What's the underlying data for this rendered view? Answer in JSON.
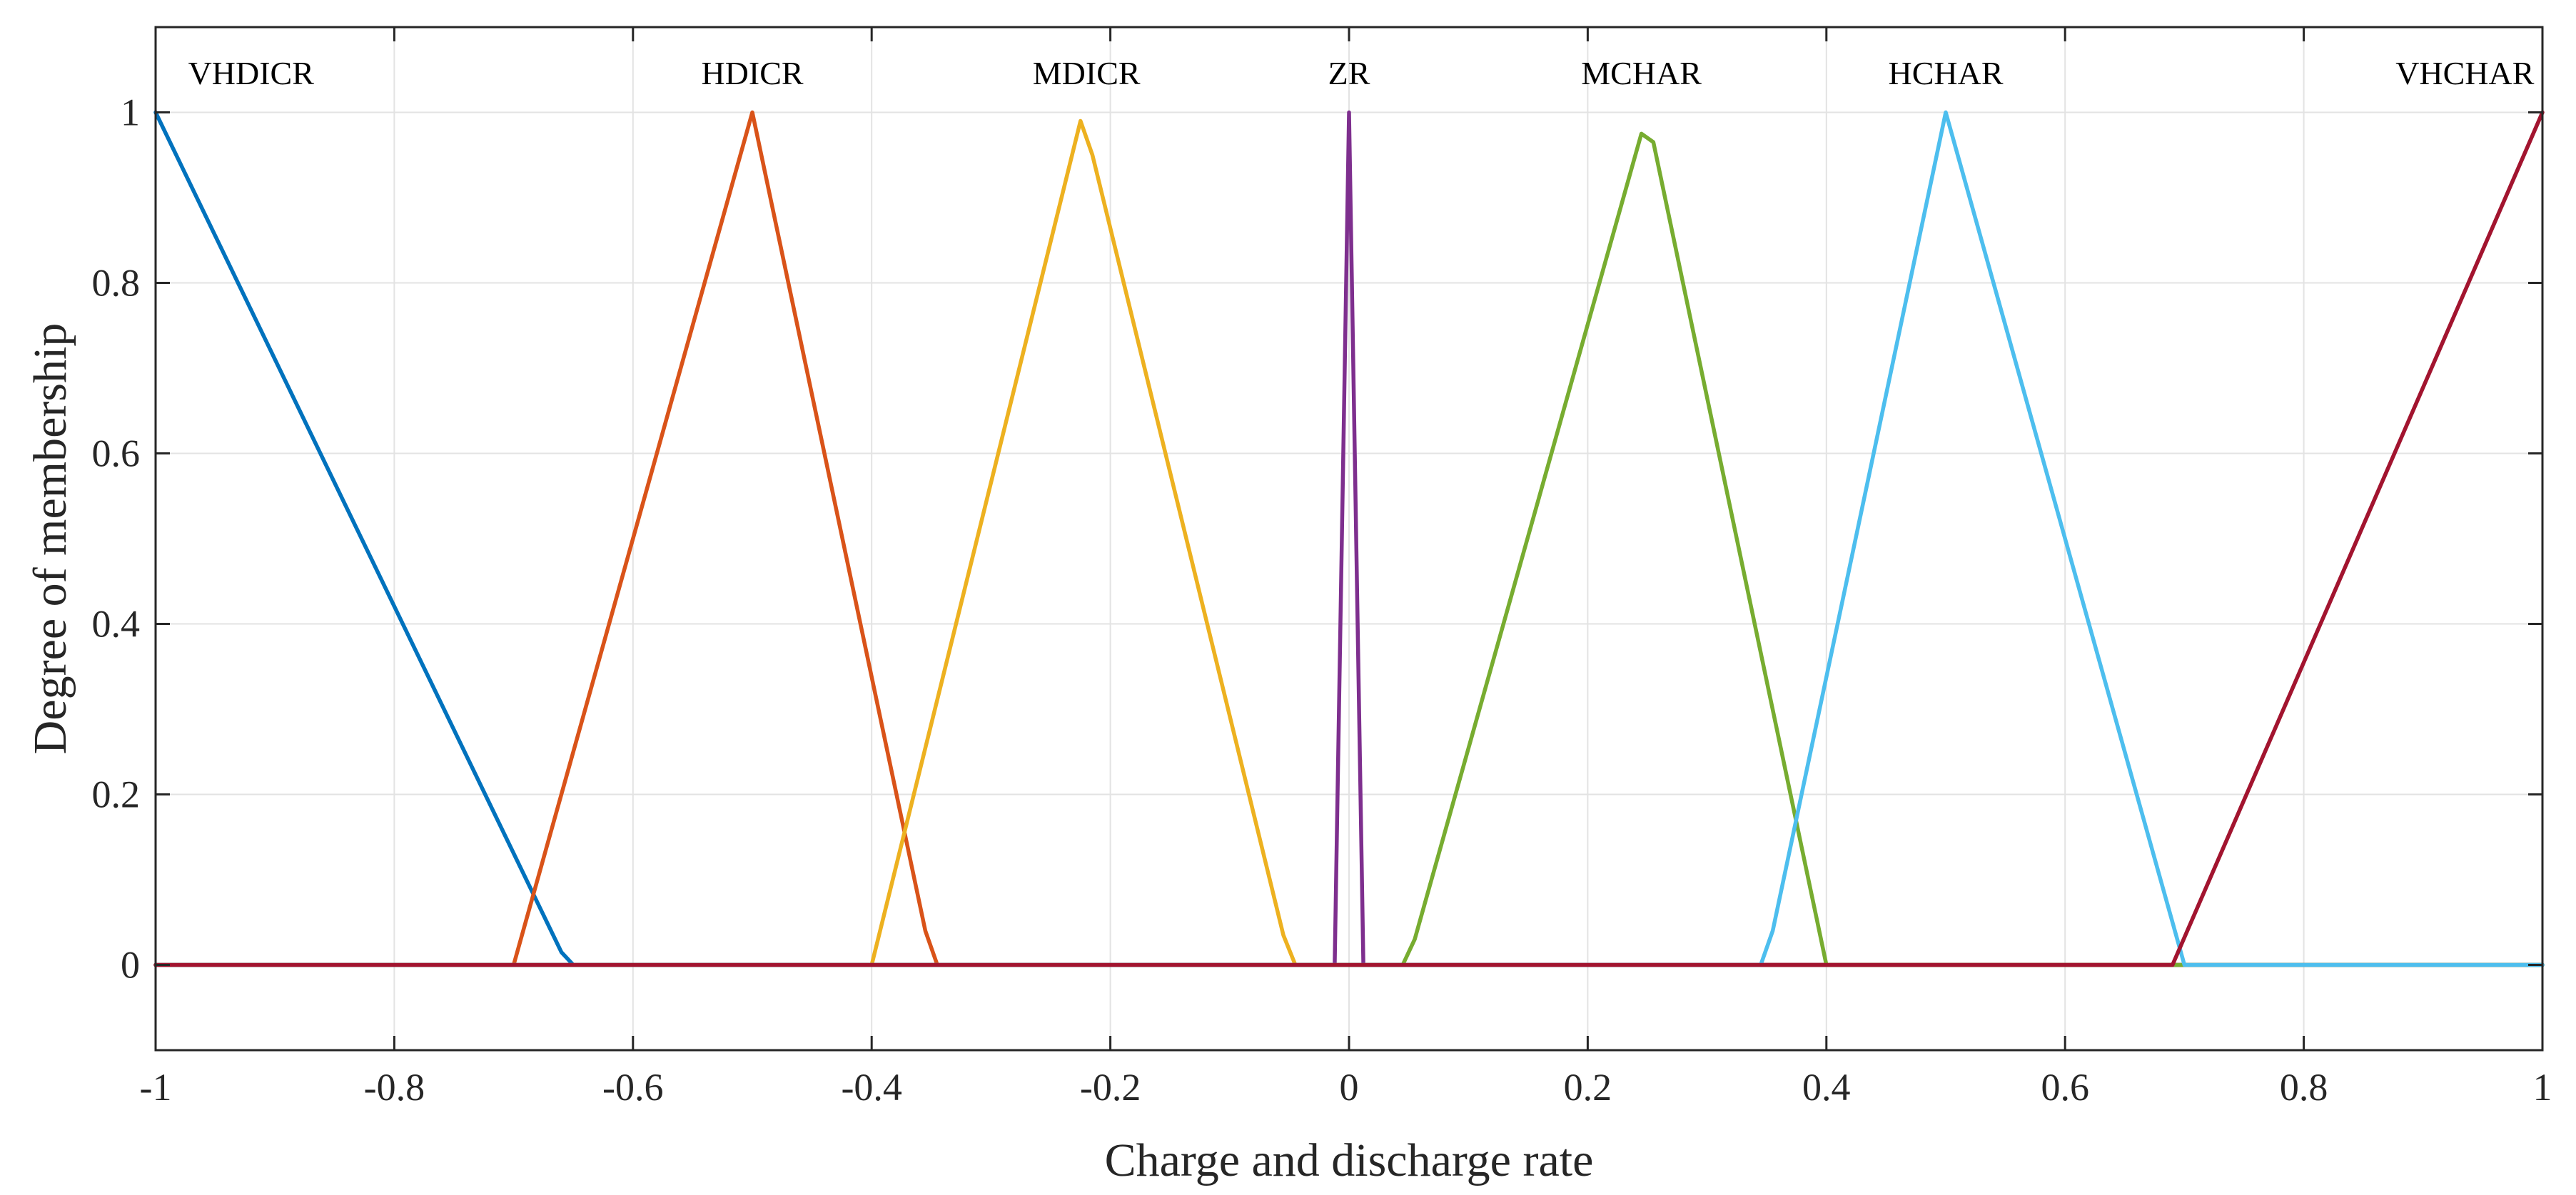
{
  "chart_data": {
    "type": "line",
    "title": "",
    "xlabel": "Charge and discharge rate",
    "ylabel": "Degree of membership",
    "xlim": [
      -1,
      1
    ],
    "ylim": [
      -0.1,
      1.1
    ],
    "xticks": [
      -1,
      -0.8,
      -0.6,
      -0.4,
      -0.2,
      0,
      0.2,
      0.4,
      0.6,
      0.8,
      1
    ],
    "xtick_labels": [
      "-1",
      "-0.8",
      "-0.6",
      "-0.4",
      "-0.2",
      "0",
      "0.2",
      "0.4",
      "0.6",
      "0.8",
      "1"
    ],
    "yticks": [
      0,
      0.2,
      0.4,
      0.6,
      0.8,
      1
    ],
    "ytick_labels": [
      "0",
      "0.2",
      "0.4",
      "0.6",
      "0.8",
      "1"
    ],
    "grid": true,
    "series": [
      {
        "name": "VHDICR",
        "color": "#0072BD",
        "label_x": -0.92,
        "x": [
          -1,
          -0.66,
          -0.65,
          1
        ],
        "y": [
          1,
          0.015,
          0,
          0
        ]
      },
      {
        "name": "HDICR",
        "color": "#D95319",
        "label_x": -0.5,
        "x": [
          -1,
          -0.7,
          -0.5,
          -0.355,
          -0.345,
          1
        ],
        "y": [
          0,
          0,
          1,
          0.04,
          0,
          0
        ]
      },
      {
        "name": "MDICR",
        "color": "#EDB120",
        "label_x": -0.22,
        "x": [
          -1,
          -0.4,
          -0.225,
          -0.215,
          -0.055,
          -0.045,
          1
        ],
        "y": [
          0,
          0,
          0.99,
          0.95,
          0.035,
          0,
          0
        ]
      },
      {
        "name": "ZR",
        "color": "#7E2F8E",
        "label_x": 0,
        "x": [
          -1,
          -0.012,
          0,
          0.012,
          1
        ],
        "y": [
          0,
          0,
          1,
          0,
          0
        ]
      },
      {
        "name": "MCHAR",
        "color": "#77AC30",
        "label_x": 0.245,
        "x": [
          -1,
          0.045,
          0.055,
          0.245,
          0.255,
          0.4,
          1
        ],
        "y": [
          0,
          0,
          0.03,
          0.975,
          0.965,
          0,
          0
        ]
      },
      {
        "name": "HCHAR",
        "color": "#4DBEEE",
        "label_x": 0.5,
        "x": [
          -1,
          0.345,
          0.355,
          0.5,
          0.7,
          1
        ],
        "y": [
          0,
          0,
          0.04,
          1,
          0,
          0
        ]
      },
      {
        "name": "VHCHAR",
        "color": "#A2142F",
        "label_x": 0.935,
        "x": [
          -1,
          0.69,
          1
        ],
        "y": [
          0,
          0,
          1
        ]
      }
    ]
  }
}
